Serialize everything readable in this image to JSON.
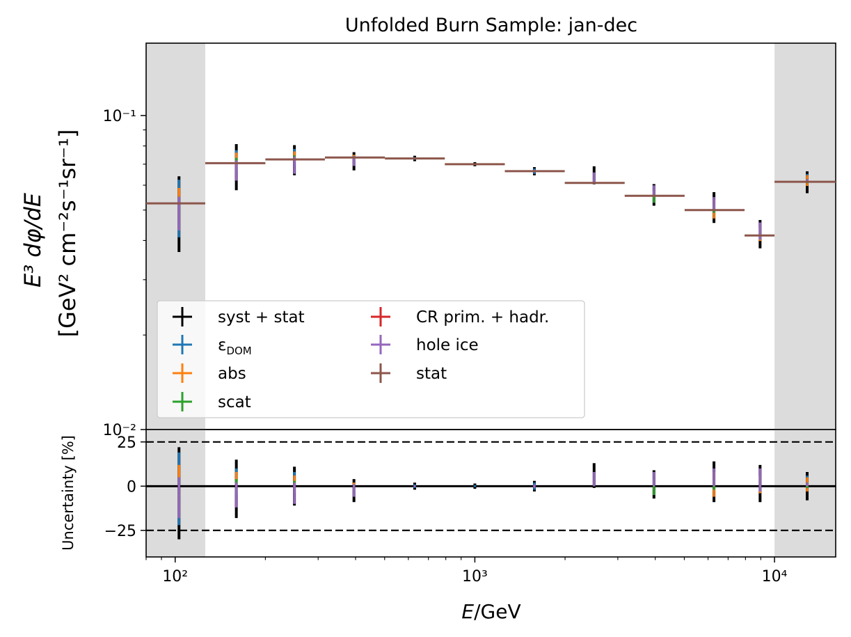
{
  "chart_data": [
    {
      "type": "errorbar",
      "panel": "main",
      "title": "Unfolded Burn Sample: jan-dec",
      "ylabel_line1": "E³ dφ/dE",
      "ylabel_line2": "[GeV² cm⁻²s⁻¹sr⁻¹]",
      "xscale": "log",
      "yscale": "log",
      "xlim": [
        80,
        16000
      ],
      "ylim": [
        0.01,
        0.17
      ],
      "yticks": [
        {
          "value": 0.1,
          "label": "10⁻¹"
        },
        {
          "value": 0.01,
          "label": "10⁻²"
        }
      ],
      "shaded_x_ranges": [
        [
          80,
          126
        ],
        [
          10000,
          16000
        ]
      ],
      "bin_edges": [
        80,
        126,
        200,
        316,
        501,
        794,
        1259,
        1995,
        3162,
        5012,
        7943,
        10000,
        16000
      ],
      "x_centers": [
        103,
        160,
        250,
        395,
        630,
        1000,
        1580,
        2500,
        3960,
        6280,
        8950,
        12850
      ],
      "values": [
        0.0525,
        0.0705,
        0.0725,
        0.0735,
        0.073,
        0.07,
        0.0665,
        0.061,
        0.0555,
        0.05,
        0.0415,
        0.0615
      ],
      "errors_pct": {
        "syst_stat": [
          [
            -30,
            22
          ],
          [
            -18,
            15
          ],
          [
            -11,
            11
          ],
          [
            -9,
            4
          ],
          [
            -2,
            2
          ],
          [
            -1.5,
            1.5
          ],
          [
            -3,
            3
          ],
          [
            -1,
            13
          ],
          [
            -7,
            9
          ],
          [
            -9,
            14
          ],
          [
            -9,
            12
          ],
          [
            -8,
            8
          ]
        ],
        "eps_dom": [
          [
            -22,
            19
          ],
          [
            -5,
            10
          ],
          [
            -4,
            8
          ],
          [
            -3,
            2
          ],
          [
            -1,
            1
          ],
          [
            -0.5,
            0.5
          ],
          [
            -2,
            2
          ],
          [
            0,
            2
          ],
          [
            -2,
            2
          ],
          [
            -3,
            3
          ],
          [
            -3,
            5
          ],
          [
            -3,
            6
          ]
        ],
        "abs": [
          [
            -10,
            12
          ],
          [
            -3,
            8
          ],
          [
            -2,
            6
          ],
          [
            -2,
            2
          ],
          [
            0,
            0
          ],
          [
            0,
            0
          ],
          [
            0,
            0
          ],
          [
            0,
            2
          ],
          [
            -2,
            3
          ],
          [
            -6,
            8
          ],
          [
            -4,
            6
          ],
          [
            -3,
            5
          ]
        ],
        "scat": [
          [
            -5,
            5
          ],
          [
            -2,
            4
          ],
          [
            -1,
            3
          ],
          [
            -1,
            1
          ],
          [
            0,
            0
          ],
          [
            0,
            0
          ],
          [
            0,
            0
          ],
          [
            0,
            2
          ],
          [
            -5,
            4
          ],
          [
            -2,
            4
          ],
          [
            -2,
            3
          ],
          [
            -1,
            2
          ]
        ],
        "cr_prim_hadr": [
          [
            -1,
            1
          ],
          [
            -1,
            1
          ],
          [
            -1,
            1
          ],
          [
            0,
            0
          ],
          [
            0,
            0
          ],
          [
            0,
            0
          ],
          [
            0,
            0
          ],
          [
            0,
            0
          ],
          [
            0,
            0
          ],
          [
            0,
            0
          ],
          [
            0,
            0
          ],
          [
            0,
            0
          ]
        ],
        "hole_ice": [
          [
            -18,
            5
          ],
          [
            -12,
            2
          ],
          [
            -10,
            2
          ],
          [
            -6,
            1
          ],
          [
            -0.5,
            0.5
          ],
          [
            0,
            0
          ],
          [
            -1,
            1
          ],
          [
            0,
            8
          ],
          [
            0,
            8
          ],
          [
            0,
            10
          ],
          [
            -3,
            10
          ],
          [
            0,
            2
          ]
        ]
      },
      "series": [
        {
          "key": "syst_stat",
          "name": "syst + stat",
          "color": "#000000"
        },
        {
          "key": "eps_dom",
          "name": "ε",
          "name_sub": "DOM",
          "color": "#1f77b4"
        },
        {
          "key": "abs",
          "name": "abs",
          "color": "#ff7f0e"
        },
        {
          "key": "scat",
          "name": "scat",
          "color": "#2ca02c"
        },
        {
          "key": "cr_prim_hadr",
          "name": "CR prim. + hadr.",
          "color": "#d62728"
        },
        {
          "key": "hole_ice",
          "name": "hole ice",
          "color": "#9467bd"
        },
        {
          "key": "stat",
          "name": "stat",
          "color": "#8c564b"
        }
      ],
      "legend_loc": "lower-left",
      "grid": false
    },
    {
      "type": "errorbar",
      "panel": "ratio",
      "ylabel": "Uncertainty [%]",
      "xlabel_math": "E",
      "xlabel_unit": "/GeV",
      "xscale": "log",
      "xlim": [
        80,
        16000
      ],
      "ylim": [
        -40,
        32
      ],
      "xticks": [
        {
          "value": 100,
          "label": "10²"
        },
        {
          "value": 1000,
          "label": "10³"
        },
        {
          "value": 10000,
          "label": "10⁴"
        }
      ],
      "yticks": [
        {
          "value": 25,
          "label": "25"
        },
        {
          "value": 0,
          "label": "0"
        },
        {
          "value": -25,
          "label": "−25"
        }
      ],
      "reference_lines": [
        {
          "y": 25,
          "style": "dashed"
        },
        {
          "y": -25,
          "style": "dashed"
        },
        {
          "y": 0,
          "style": "solid"
        }
      ],
      "grid": false
    }
  ]
}
